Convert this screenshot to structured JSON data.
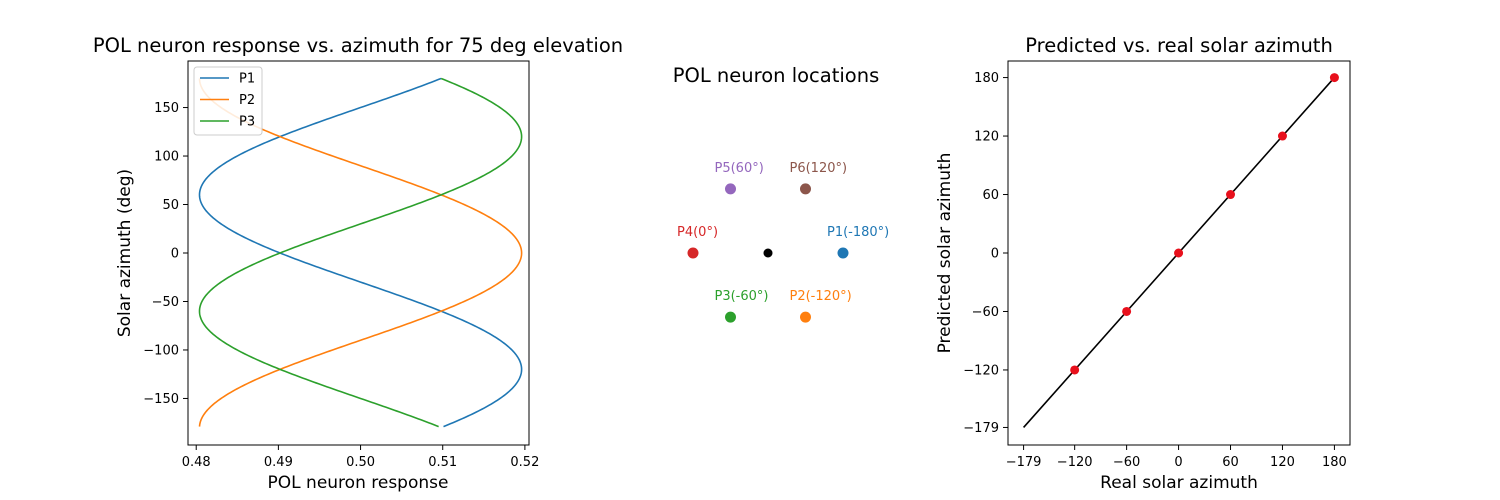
{
  "chart_data": [
    {
      "type": "line",
      "title": "POL neuron response vs. azimuth for 75 deg elevation",
      "xlabel": "POL neuron response",
      "ylabel": "Solar azimuth (deg)",
      "xlim": [
        0.479,
        0.5205
      ],
      "ylim": [
        -198,
        198
      ],
      "xticks": [
        0.48,
        0.49,
        0.5,
        0.51,
        0.52
      ],
      "xtick_labels": [
        "0.48",
        "0.49",
        "0.50",
        "0.51",
        "0.52"
      ],
      "yticks": [
        -150,
        -100,
        -50,
        0,
        50,
        100,
        150
      ],
      "ytick_labels": [
        "−150",
        "−100",
        "−50",
        "0",
        "50",
        "100",
        "150"
      ],
      "legend": "top-left",
      "grid": false,
      "response_center": 0.5,
      "response_amplitude": 0.0196,
      "azimuth_range": [
        -179,
        180
      ],
      "series": [
        {
          "name": "P1",
          "color": "#1f77b4",
          "preferred_azimuth": -120
        },
        {
          "name": "P2",
          "color": "#ff7f0e",
          "preferred_azimuth": 0
        },
        {
          "name": "P3",
          "color": "#2ca02c",
          "preferred_azimuth": 120
        }
      ]
    },
    {
      "type": "scatter",
      "title": "POL neuron locations",
      "axis": "off",
      "xlim": [
        -1.5,
        1.5
      ],
      "ylim": [
        -1.5,
        1.5
      ],
      "points": [
        {
          "label": "P1(-180°)",
          "x": 1.0,
          "y": 0.0,
          "color": "#1f77b4"
        },
        {
          "label": "P2(-120°)",
          "x": 0.5,
          "y": -0.866,
          "color": "#ff7f0e"
        },
        {
          "label": "P3(-60°)",
          "x": -0.5,
          "y": -0.866,
          "color": "#2ca02c"
        },
        {
          "label": "P4(0°)",
          "x": -1.0,
          "y": 0.0,
          "color": "#d62728"
        },
        {
          "label": "P5(60°)",
          "x": -0.5,
          "y": 0.866,
          "color": "#9467bd"
        },
        {
          "label": "P6(120°)",
          "x": 0.5,
          "y": 0.866,
          "color": "#8c564b"
        },
        {
          "label": "",
          "x": 0.0,
          "y": 0.0,
          "color": "#000000"
        }
      ]
    },
    {
      "type": "scatter",
      "title": "Predicted vs. real solar azimuth",
      "xlabel": "Real solar azimuth",
      "ylabel": "Predicted solar azimuth",
      "xlim": [
        -197,
        198
      ],
      "ylim": [
        -197,
        197
      ],
      "ticks": [
        -179,
        -120,
        -60,
        0,
        60,
        120,
        180
      ],
      "tick_labels": [
        "−179",
        "−120",
        "−60",
        "0",
        "60",
        "120",
        "180"
      ],
      "grid": false,
      "line": {
        "x": [
          -179,
          180
        ],
        "y": [
          -179,
          180
        ],
        "color": "#000000"
      },
      "points": {
        "x": [
          -120,
          -60,
          0,
          60,
          120,
          180
        ],
        "y": [
          -120,
          -60,
          0,
          60,
          120,
          180
        ],
        "color": "#e8101c"
      }
    }
  ]
}
